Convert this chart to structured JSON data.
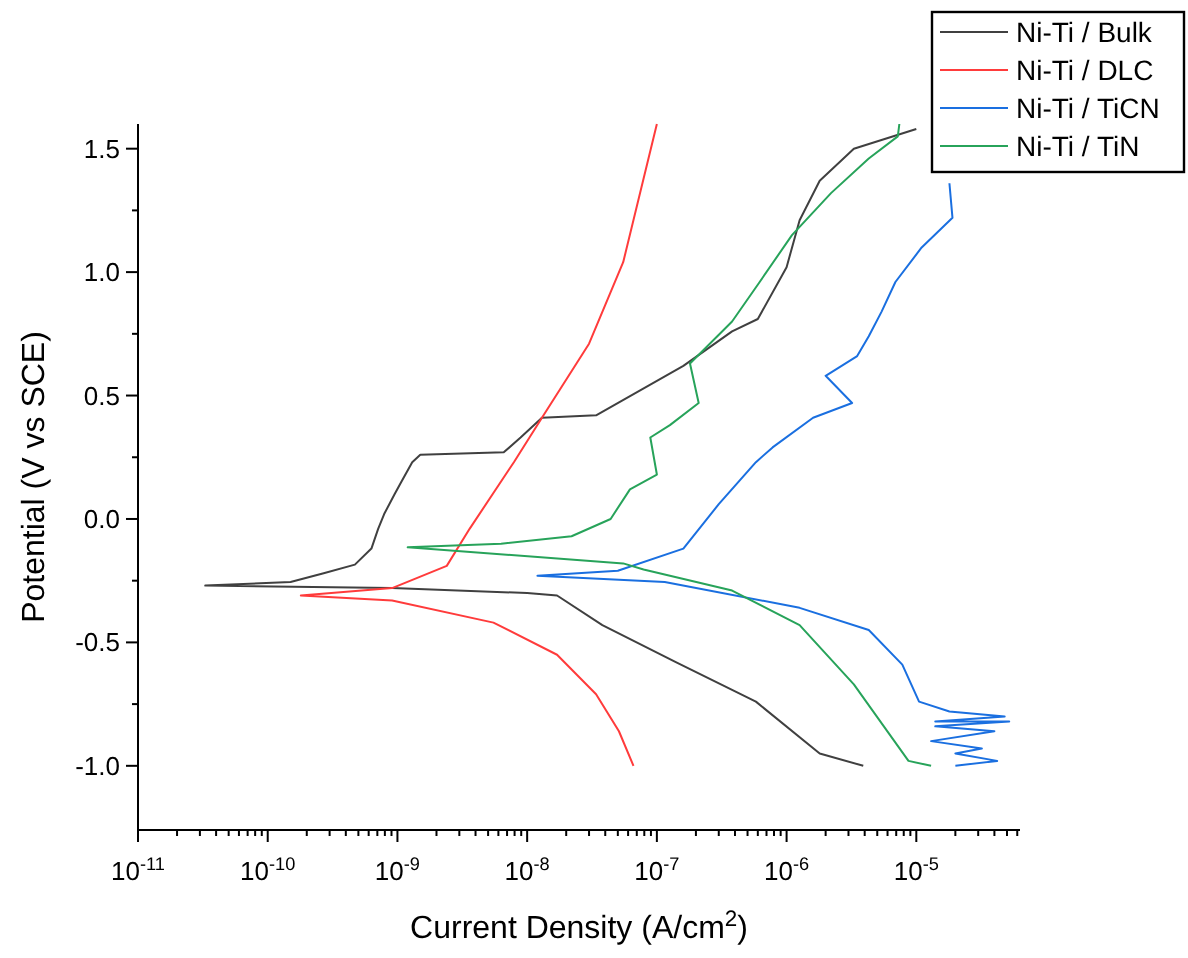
{
  "chart_data": {
    "type": "line",
    "xlabel": "Current Density (A/cm$^{2}$)",
    "ylabel": "Potential (V vs SCE)",
    "log": "x",
    "grid": false,
    "legend": "top right",
    "marker": "none",
    "line_style": "solid",
    "xlim": [
      1e-11,
      6.3e-05
    ],
    "ylim": [
      -1.26,
      1.6
    ],
    "xticks": [
      {
        "value": 1e-11,
        "label": "10$^{-11}$"
      },
      {
        "value": 2e-11,
        "label": null
      },
      {
        "value": 3e-11,
        "label": null
      },
      {
        "value": 4e-11,
        "label": null
      },
      {
        "value": 5e-11,
        "label": null
      },
      {
        "value": 6e-11,
        "label": null
      },
      {
        "value": 7e-11,
        "label": null
      },
      {
        "value": 8e-11,
        "label": null
      },
      {
        "value": 9e-11,
        "label": null
      },
      {
        "value": 1e-10,
        "label": "10$^{-10}$"
      },
      {
        "value": 2e-10,
        "label": null
      },
      {
        "value": 3e-10,
        "label": null
      },
      {
        "value": 4e-10,
        "label": null
      },
      {
        "value": 5e-10,
        "label": null
      },
      {
        "value": 6e-10,
        "label": null
      },
      {
        "value": 7e-10,
        "label": null
      },
      {
        "value": 8e-10,
        "label": null
      },
      {
        "value": 9e-10,
        "label": null
      },
      {
        "value": 1e-09,
        "label": "10$^{-9}$"
      },
      {
        "value": 2e-09,
        "label": null
      },
      {
        "value": 3e-09,
        "label": null
      },
      {
        "value": 4e-09,
        "label": null
      },
      {
        "value": 5e-09,
        "label": null
      },
      {
        "value": 6e-09,
        "label": null
      },
      {
        "value": 7e-09,
        "label": null
      },
      {
        "value": 8e-09,
        "label": null
      },
      {
        "value": 9e-09,
        "label": null
      },
      {
        "value": 1e-08,
        "label": "10$^{-8}$"
      },
      {
        "value": 2e-08,
        "label": null
      },
      {
        "value": 3e-08,
        "label": null
      },
      {
        "value": 4e-08,
        "label": null
      },
      {
        "value": 5e-08,
        "label": null
      },
      {
        "value": 6e-08,
        "label": null
      },
      {
        "value": 7e-08,
        "label": null
      },
      {
        "value": 8e-08,
        "label": null
      },
      {
        "value": 9e-08,
        "label": null
      },
      {
        "value": 1e-07,
        "label": "10$^{-7}$"
      },
      {
        "value": 2e-07,
        "label": null
      },
      {
        "value": 3e-07,
        "label": null
      },
      {
        "value": 4e-07,
        "label": null
      },
      {
        "value": 5e-07,
        "label": null
      },
      {
        "value": 6e-07,
        "label": null
      },
      {
        "value": 7e-07,
        "label": null
      },
      {
        "value": 8e-07,
        "label": null
      },
      {
        "value": 9e-07,
        "label": null
      },
      {
        "value": 1e-06,
        "label": "10$^{-6}$"
      },
      {
        "value": 2e-06,
        "label": null
      },
      {
        "value": 3e-06,
        "label": null
      },
      {
        "value": 4e-06,
        "label": null
      },
      {
        "value": 5e-06,
        "label": null
      },
      {
        "value": 6e-06,
        "label": null
      },
      {
        "value": 7e-06,
        "label": null
      },
      {
        "value": 8e-06,
        "label": null
      },
      {
        "value": 9e-06,
        "label": null
      },
      {
        "value": 1e-05,
        "label": "10$^{-5}$"
      },
      {
        "value": 2e-05,
        "label": null
      },
      {
        "value": 3e-05,
        "label": null
      },
      {
        "value": 4e-05,
        "label": null
      },
      {
        "value": 5e-05,
        "label": null
      },
      {
        "value": 6e-05,
        "label": null
      }
    ],
    "yticks": [
      {
        "value": -1,
        "label": "-1.0"
      },
      {
        "value": -0.75,
        "label": null
      },
      {
        "value": -0.5,
        "label": "-0.5"
      },
      {
        "value": -0.25,
        "label": null
      },
      {
        "value": 0,
        "label": "0.0"
      },
      {
        "value": 0.25,
        "label": null
      },
      {
        "value": 0.5,
        "label": "0.5"
      },
      {
        "value": 0.75,
        "label": null
      },
      {
        "value": 1,
        "label": "1.0"
      },
      {
        "value": 1.25,
        "label": null
      },
      {
        "value": 1.5,
        "label": "1.5"
      }
    ],
    "series": [
      {
        "name": "Ni-Ti / Bulk",
        "color": "#404040",
        "x": [
          3.9e-06,
          1.8e-06,
          5.8e-07,
          1.4e-07,
          3.8e-08,
          1.7e-08,
          1e-08,
          9.1e-10,
          3.3e-11,
          1.5e-10,
          2.7e-10,
          4.7e-10,
          6.3e-10,
          7.1e-10,
          7.9e-10,
          9.5e-10,
          1.07e-09,
          1.3e-09,
          1.5e-09,
          6.6e-09,
          8.9e-09,
          1.3e-08,
          3.4e-08,
          1.6e-07,
          3.8e-07,
          6e-07,
          1e-06,
          1.26e-06,
          1.8e-06,
          3.3e-06,
          1e-05
        ],
        "values": [
          -1.0,
          -0.95,
          -0.74,
          -0.58,
          -0.43,
          -0.31,
          -0.3,
          -0.28,
          -0.27,
          -0.255,
          -0.22,
          -0.185,
          -0.12,
          -0.04,
          0.02,
          0.1,
          0.15,
          0.23,
          0.26,
          0.27,
          0.33,
          0.41,
          0.42,
          0.62,
          0.76,
          0.81,
          1.02,
          1.21,
          1.37,
          1.5,
          1.58
        ]
      },
      {
        "name": "Ni-Ti / DLC",
        "color": "#ff3b3b",
        "x": [
          6.6e-08,
          5.1e-08,
          3.4e-08,
          1.7e-08,
          5.5e-09,
          9.1e-10,
          1.8e-10,
          9.1e-10,
          2.4e-09,
          3.6e-09,
          7.9e-09,
          1.3e-08,
          3e-08,
          5.5e-08,
          1e-07
        ],
        "values": [
          -1.0,
          -0.86,
          -0.71,
          -0.55,
          -0.42,
          -0.33,
          -0.31,
          -0.28,
          -0.19,
          -0.04,
          0.23,
          0.41,
          0.71,
          1.04,
          1.6
        ]
      },
      {
        "name": "Ni-Ti / TiCN",
        "color": "#1a6fe0",
        "x": [
          2e-05,
          4.2e-05,
          2e-05,
          3.2e-05,
          1.3e-05,
          4e-05,
          1.4e-05,
          5.2e-05,
          1.4e-05,
          4.8e-05,
          1.8e-05,
          1.05e-05,
          7.8e-06,
          4.3e-06,
          1.26e-06,
          1.15e-07,
          1.2e-08,
          5e-08,
          1.6e-07,
          3e-07,
          5.8e-07,
          7.8e-07,
          1.6e-06,
          3.2e-06,
          2e-06,
          3.5e-06,
          4.3e-06,
          5.4e-06,
          6.9e-06,
          1.1e-05,
          1.9e-05,
          1.8e-05
        ],
        "values": [
          -1.0,
          -0.98,
          -0.95,
          -0.93,
          -0.9,
          -0.86,
          -0.84,
          -0.82,
          -0.82,
          -0.8,
          -0.78,
          -0.74,
          -0.59,
          -0.45,
          -0.36,
          -0.255,
          -0.23,
          -0.21,
          -0.12,
          0.06,
          0.23,
          0.29,
          0.41,
          0.47,
          0.58,
          0.66,
          0.74,
          0.84,
          0.96,
          1.1,
          1.22,
          1.36
        ]
      },
      {
        "name": "Ni-Ti / TiN",
        "color": "#27a35a",
        "x": [
          1.3e-05,
          8.7e-06,
          3.3e-06,
          1.26e-06,
          3.8e-07,
          7.9e-08,
          5.5e-08,
          1.2e-09,
          6.3e-09,
          2.2e-08,
          4.4e-08,
          6.2e-08,
          1e-07,
          8.9e-08,
          1.26e-07,
          2.1e-07,
          1.8e-07,
          3.8e-07,
          6.2e-07,
          1.1e-06,
          2.2e-06,
          4.3e-06,
          7.2e-06,
          7.4e-06
        ],
        "values": [
          -1.0,
          -0.98,
          -0.67,
          -0.43,
          -0.29,
          -0.205,
          -0.18,
          -0.115,
          -0.1,
          -0.07,
          0.0,
          0.12,
          0.18,
          0.33,
          0.38,
          0.47,
          0.63,
          0.8,
          0.96,
          1.15,
          1.32,
          1.46,
          1.55,
          1.6
        ]
      }
    ]
  }
}
